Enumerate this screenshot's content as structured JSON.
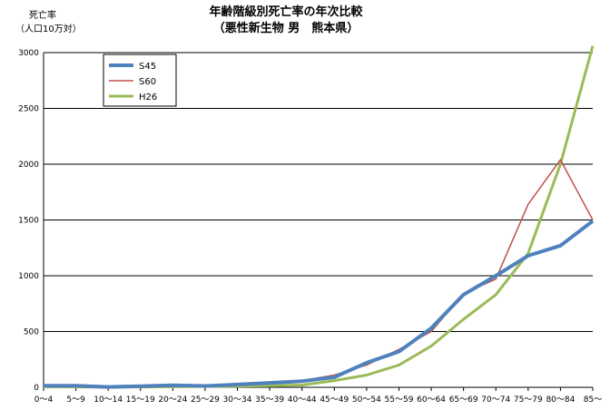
{
  "chart_data": {
    "type": "line",
    "title": "年齢階級別死亡率の年次比較",
    "subtitle": "（悪性新生物 男　熊本県）",
    "ylabel_line1": "死亡率",
    "ylabel_line2": "（人口10万対）",
    "xlabel": "",
    "ylim": [
      0,
      3000
    ],
    "yticks": [
      0,
      500,
      1000,
      1500,
      2000,
      2500,
      3000
    ],
    "grid": true,
    "legend_position": "top-left",
    "categories": [
      "0～4",
      "5～9",
      "10～14",
      "15～19",
      "20～24",
      "25～29",
      "30～34",
      "35～39",
      "40～44",
      "45～49",
      "50～54",
      "55～59",
      "60～64",
      "65～69",
      "70～74",
      "75～79",
      "80～84",
      "85～"
    ],
    "series": [
      {
        "name": "S45",
        "color": "#4F81BD",
        "values": [
          15,
          15,
          3,
          10,
          18,
          12,
          25,
          40,
          55,
          90,
          220,
          320,
          530,
          830,
          1000,
          1180,
          1270,
          1490
        ]
      },
      {
        "name": "S60",
        "color": "#C0504D",
        "values": [
          8,
          5,
          3,
          8,
          10,
          10,
          20,
          30,
          60,
          110,
          200,
          340,
          500,
          840,
          970,
          1640,
          2040,
          1500
        ]
      },
      {
        "name": "H26",
        "color": "#9BBB59",
        "values": [
          5,
          3,
          2,
          3,
          5,
          8,
          10,
          15,
          20,
          60,
          110,
          200,
          370,
          610,
          830,
          1200,
          2000,
          3060
        ]
      }
    ]
  }
}
